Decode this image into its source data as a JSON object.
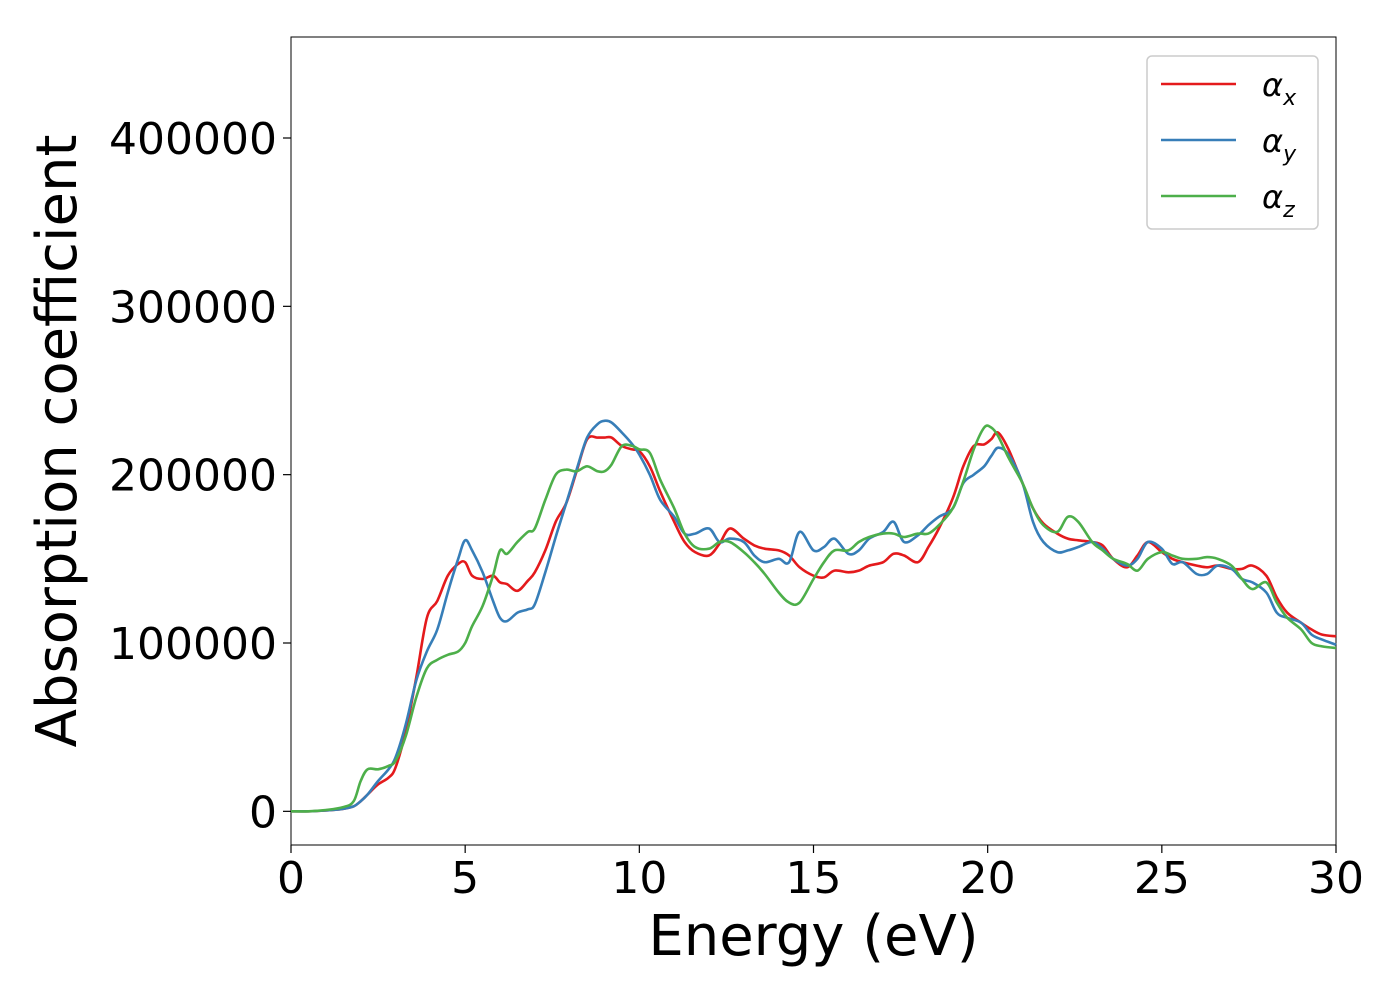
{
  "chart_data": {
    "type": "line",
    "xlabel": "Energy (eV)",
    "ylabel": "Absorption coefficient",
    "xlim": [
      0,
      30
    ],
    "ylim": [
      -20000,
      460000
    ],
    "xticks": [
      0,
      5,
      10,
      15,
      20,
      25,
      30
    ],
    "yticks": [
      0,
      100000,
      200000,
      300000,
      400000
    ],
    "xtick_labels": [
      "0",
      "5",
      "10",
      "15",
      "20",
      "25",
      "30"
    ],
    "ytick_labels": [
      "0",
      "100000",
      "200000",
      "300000",
      "400000"
    ],
    "grid": false,
    "legend_position": "top-right",
    "x": [
      0,
      0.5,
      1,
      1.5,
      1.8,
      2,
      2.2,
      2.5,
      2.8,
      3,
      3.3,
      3.6,
      3.9,
      4.2,
      4.5,
      4.8,
      5,
      5.2,
      5.5,
      5.8,
      6,
      6.2,
      6.5,
      6.8,
      7,
      7.3,
      7.6,
      7.9,
      8.2,
      8.5,
      8.8,
      9,
      9.2,
      9.5,
      9.8,
      10,
      10.3,
      10.6,
      11,
      11.3,
      11.6,
      12,
      12.3,
      12.6,
      13,
      13.3,
      13.6,
      14,
      14.3,
      14.6,
      15,
      15.3,
      15.6,
      16,
      16.3,
      16.6,
      17,
      17.3,
      17.6,
      18,
      18.3,
      18.6,
      19,
      19.3,
      19.6,
      19.9,
      20.1,
      20.3,
      20.6,
      21,
      21.3,
      21.6,
      22,
      22.3,
      22.6,
      23,
      23.3,
      23.6,
      24,
      24.3,
      24.6,
      25,
      25.3,
      25.6,
      26,
      26.3,
      26.6,
      27,
      27.3,
      27.6,
      28,
      28.3,
      28.6,
      29,
      29.3,
      29.6,
      30
    ],
    "series": [
      {
        "name": "α",
        "subscript": "x",
        "color": "#e41a1c",
        "values": [
          0,
          0,
          500,
          1500,
          3000,
          6000,
          10000,
          16000,
          20000,
          26000,
          48000,
          80000,
          115000,
          125000,
          140000,
          147000,
          148000,
          140000,
          138000,
          140000,
          136000,
          135000,
          131000,
          137000,
          142000,
          155000,
          172000,
          183000,
          202000,
          221000,
          222000,
          222000,
          222000,
          217000,
          215000,
          214000,
          205000,
          190000,
          172000,
          160000,
          154000,
          152000,
          159000,
          168000,
          162000,
          158000,
          156000,
          155000,
          152000,
          145000,
          140000,
          139000,
          143000,
          142000,
          143000,
          146000,
          148000,
          153000,
          152000,
          148000,
          157000,
          168000,
          186000,
          205000,
          217000,
          218000,
          221000,
          225000,
          215000,
          195000,
          180000,
          171000,
          165000,
          162000,
          161000,
          160000,
          158000,
          150000,
          145000,
          152000,
          160000,
          154000,
          150000,
          148000,
          146000,
          145000,
          146000,
          144000,
          144000,
          146000,
          140000,
          127000,
          118000,
          112000,
          108000,
          105000,
          104000
        ]
      },
      {
        "name": "α",
        "subscript": "y",
        "color": "#377eb8",
        "values": [
          0,
          0,
          500,
          1500,
          3000,
          6000,
          10000,
          18000,
          25000,
          32000,
          52000,
          78000,
          95000,
          108000,
          130000,
          150000,
          161000,
          155000,
          142000,
          125000,
          115000,
          113000,
          118000,
          120000,
          123000,
          142000,
          163000,
          183000,
          203000,
          222000,
          230000,
          232000,
          231000,
          225000,
          218000,
          212000,
          200000,
          185000,
          175000,
          165000,
          165000,
          168000,
          160000,
          162000,
          160000,
          152000,
          148000,
          150000,
          148000,
          166000,
          155000,
          157000,
          162000,
          153000,
          155000,
          162000,
          166000,
          172000,
          160000,
          164000,
          170000,
          175000,
          180000,
          195000,
          200000,
          205000,
          211000,
          216000,
          212000,
          195000,
          172000,
          160000,
          154000,
          155000,
          157000,
          160000,
          156000,
          150000,
          146000,
          150000,
          160000,
          156000,
          147000,
          148000,
          141000,
          141000,
          146000,
          144000,
          138000,
          136000,
          130000,
          118000,
          115000,
          112000,
          105000,
          102000,
          99000
        ]
      },
      {
        "name": "α",
        "subscript": "z",
        "color": "#4daf4a",
        "values": [
          0,
          0,
          800,
          2500,
          6000,
          18000,
          25000,
          25000,
          27000,
          30000,
          45000,
          68000,
          85000,
          90000,
          93000,
          95000,
          100000,
          110000,
          122000,
          140000,
          155000,
          153000,
          160000,
          166000,
          168000,
          185000,
          200000,
          203000,
          202000,
          205000,
          202000,
          202000,
          206000,
          217000,
          217000,
          215000,
          213000,
          197000,
          180000,
          165000,
          157000,
          156000,
          160000,
          160000,
          154000,
          148000,
          141000,
          130000,
          124000,
          124000,
          138000,
          148000,
          155000,
          155000,
          160000,
          163000,
          165000,
          165000,
          163000,
          165000,
          165000,
          170000,
          180000,
          196000,
          215000,
          228000,
          228000,
          223000,
          210000,
          195000,
          180000,
          170000,
          166000,
          175000,
          172000,
          160000,
          155000,
          150000,
          147000,
          143000,
          150000,
          154000,
          152000,
          150000,
          150000,
          151000,
          150000,
          146000,
          138000,
          132000,
          136000,
          124000,
          115000,
          108000,
          100000,
          98000,
          97000
        ]
      }
    ]
  }
}
